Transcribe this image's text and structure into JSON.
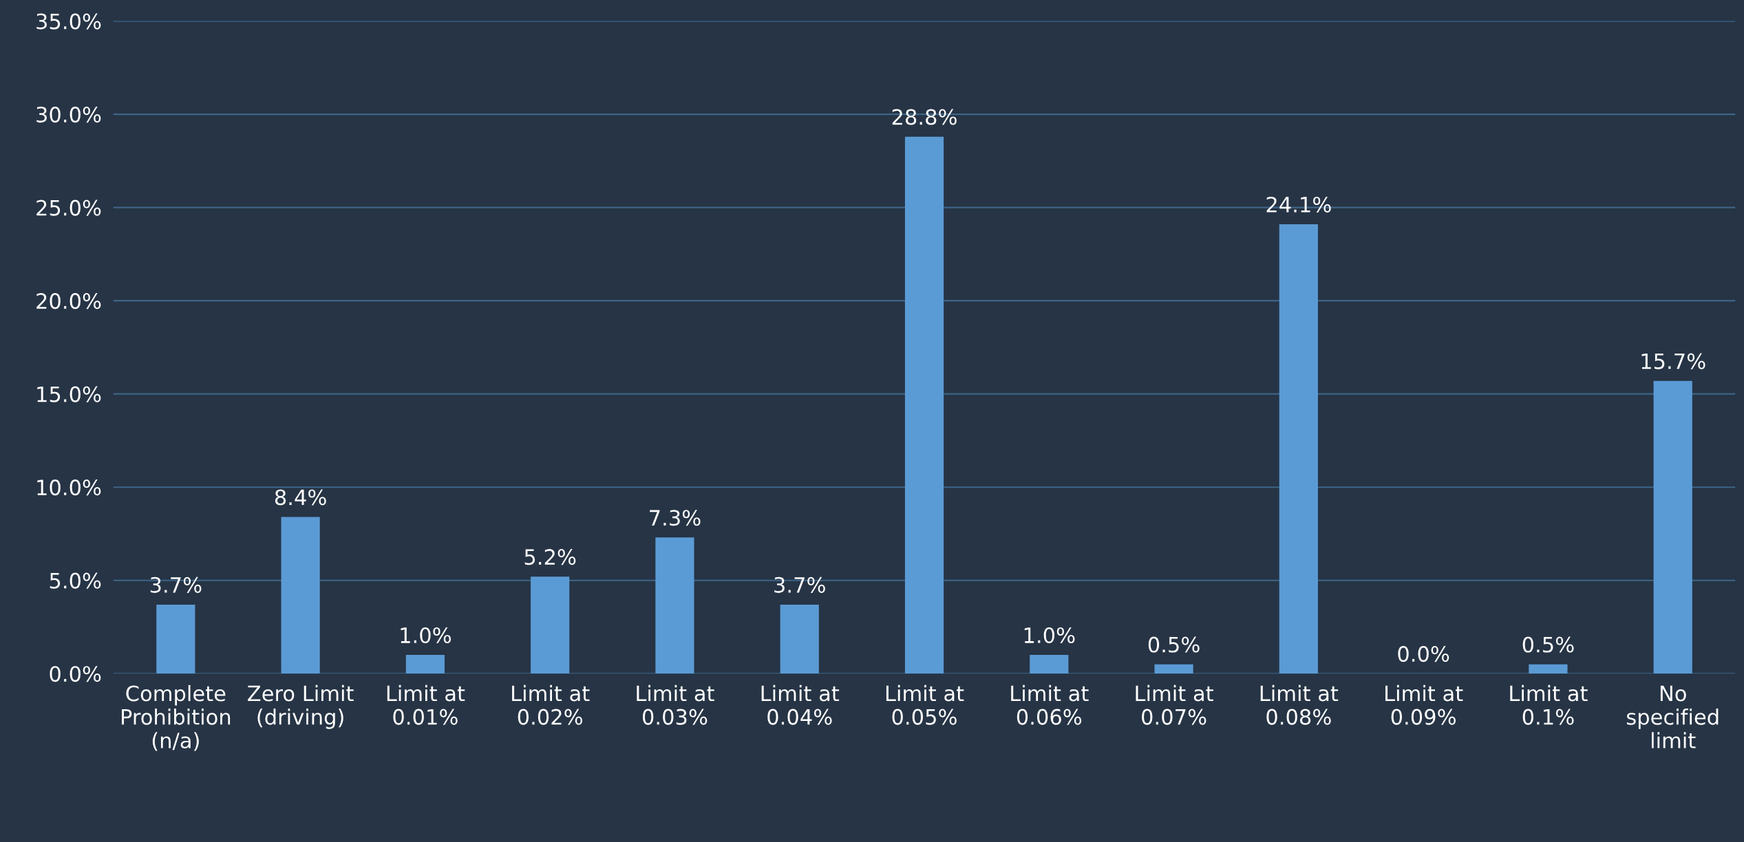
{
  "chart_data": {
    "type": "bar",
    "categories": [
      "Complete\nProhibition\n(n/a)",
      "Zero Limit\n(driving)",
      "Limit at\n0.01%",
      "Limit at\n0.02%",
      "Limit at\n0.03%",
      "Limit at\n0.04%",
      "Limit at\n0.05%",
      "Limit at\n0.06%",
      "Limit at\n0.07%",
      "Limit at\n0.08%",
      "Limit at\n0.09%",
      "Limit at\n0.1%",
      "No\nspecified\nlimit"
    ],
    "values": [
      3.7,
      8.4,
      1.0,
      5.2,
      7.3,
      3.7,
      28.8,
      1.0,
      0.5,
      24.1,
      0.0,
      0.5,
      15.7
    ],
    "value_labels": [
      "3.7%",
      "8.4%",
      "1.0%",
      "5.2%",
      "7.3%",
      "3.7%",
      "28.8%",
      "1.0%",
      "0.5%",
      "24.1%",
      "0.0%",
      "0.5%",
      "15.7%"
    ],
    "color": "#5b9bd5",
    "ylim": [
      0,
      35
    ],
    "yticks": [
      {
        "value": 0,
        "label": "0.0%"
      },
      {
        "value": 5,
        "label": "5.0%"
      },
      {
        "value": 10,
        "label": "10.0%"
      },
      {
        "value": 15,
        "label": "15.0%"
      },
      {
        "value": 20,
        "label": "20.0%"
      },
      {
        "value": 25,
        "label": "25.0%"
      },
      {
        "value": 30,
        "label": "30.0%"
      },
      {
        "value": 35,
        "label": "35.0%"
      }
    ],
    "grid": "y"
  }
}
